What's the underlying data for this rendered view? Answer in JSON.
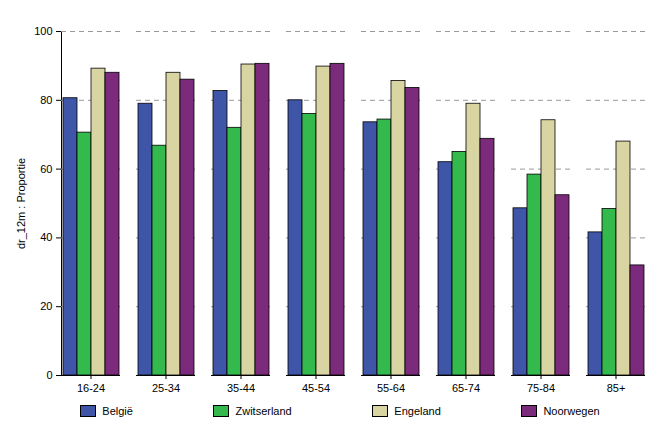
{
  "chart_data": {
    "type": "bar",
    "ylabel": "dr_12m : Proportie",
    "categories": [
      "16-24",
      "25-34",
      "35-44",
      "45-54",
      "55-64",
      "65-74",
      "75-84",
      "85+"
    ],
    "series": [
      {
        "name": "België",
        "color": "#3f55a8",
        "values": [
          80.6,
          79.0,
          82.7,
          80.0,
          73.6,
          62.0,
          48.6,
          41.6
        ]
      },
      {
        "name": "Zwitserland",
        "color": "#33b94c",
        "values": [
          70.6,
          66.8,
          72.0,
          76.0,
          74.4,
          65.0,
          58.4,
          48.4
        ]
      },
      {
        "name": "Engeland",
        "color": "#d9d5a2",
        "values": [
          89.2,
          88.0,
          90.4,
          89.8,
          85.6,
          79.0,
          74.2,
          68.0
        ]
      },
      {
        "name": "Noorwegen",
        "color": "#7c2a7c",
        "values": [
          88.0,
          86.0,
          90.6,
          90.6,
          83.6,
          68.8,
          52.4,
          32.0
        ]
      }
    ],
    "ylim": [
      0,
      100
    ],
    "yticks": [
      0,
      20,
      40,
      60,
      80,
      100
    ],
    "grid": true,
    "legend": "bottom"
  }
}
